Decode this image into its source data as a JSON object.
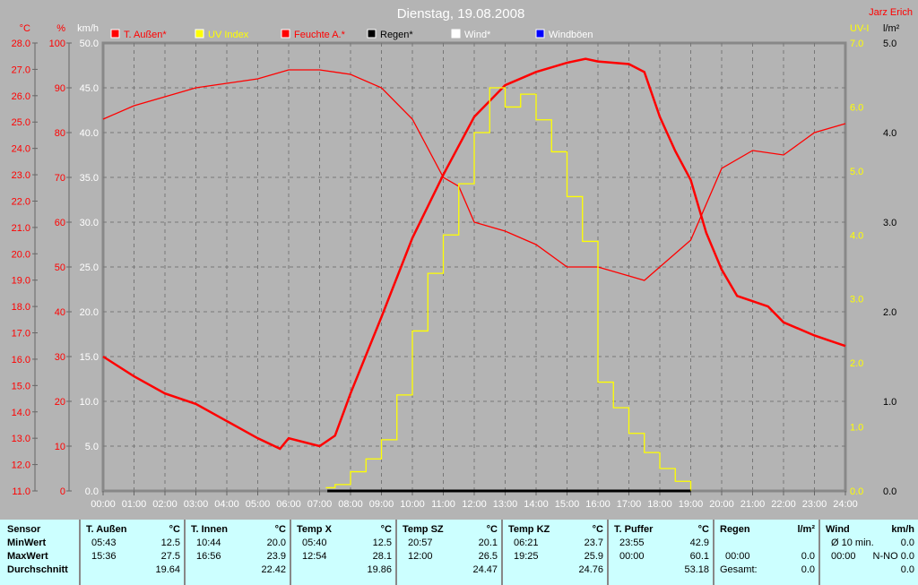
{
  "header": {
    "title": "Dienstag, 19.08.2008",
    "author": "Jarz Erich"
  },
  "legend": [
    {
      "label": "T. Außen*",
      "color": "#ff0000",
      "text_color": "#ff0000"
    },
    {
      "label": "UV Index",
      "color": "#ffff00",
      "text_color": "#ffff00"
    },
    {
      "label": "Feuchte A.*",
      "color": "#ff0000",
      "text_color": "#ff0000"
    },
    {
      "label": "Regen*",
      "color": "#000000",
      "text_color": "#000000"
    },
    {
      "label": "Wind*",
      "color": "#ffffff",
      "text_color": "#ffffff"
    },
    {
      "label": "Windböen",
      "color": "#0000ff",
      "text_color": "#ffffff"
    }
  ],
  "chart_data": {
    "type": "line",
    "title": "Dienstag, 19.08.2008",
    "x_ticks": [
      "00:00",
      "01:00",
      "02:00",
      "03:00",
      "04:00",
      "05:00",
      "06:00",
      "07:00",
      "08:00",
      "09:00",
      "10:00",
      "11:00",
      "12:00",
      "13:00",
      "14:00",
      "15:00",
      "16:00",
      "17:00",
      "18:00",
      "19:00",
      "20:00",
      "21:00",
      "22:00",
      "23:00",
      "24:00"
    ],
    "xlim": [
      0,
      24
    ],
    "axes": {
      "temp": {
        "unit": "°C",
        "range": [
          11,
          28
        ],
        "step": 1,
        "color": "#ff0000"
      },
      "humidity": {
        "unit": "%",
        "range": [
          0,
          100
        ],
        "step": 10,
        "color": "#ff0000"
      },
      "wind": {
        "unit": "km/h",
        "range": [
          0,
          50
        ],
        "step": 5,
        "color": "#ffffff"
      },
      "uv": {
        "unit": "UV-I",
        "range": [
          0,
          7
        ],
        "step": 1,
        "color": "#ffff00"
      },
      "rain": {
        "unit": "l/m²",
        "range": [
          0,
          5
        ],
        "step": 1,
        "color": "#000000"
      }
    },
    "grid": true,
    "series": [
      {
        "name": "T. Außen*",
        "axis": "temp",
        "color": "#ff0000",
        "x": [
          0,
          1,
          2,
          3,
          4,
          5,
          5.72,
          6,
          7,
          7.5,
          8,
          9,
          10,
          11,
          12,
          13,
          14,
          15,
          15.6,
          16,
          17,
          17.5,
          18,
          18.5,
          19,
          19.5,
          20,
          20.5,
          21,
          21.5,
          22,
          23,
          24
        ],
        "y": [
          16.1,
          15.35,
          14.7,
          14.3,
          13.65,
          13.0,
          12.6,
          13.0,
          12.7,
          13.1,
          14.7,
          17.6,
          20.6,
          23.0,
          25.2,
          26.4,
          26.9,
          27.25,
          27.4,
          27.3,
          27.2,
          26.9,
          25.2,
          23.9,
          22.8,
          20.8,
          19.4,
          18.4,
          18.2,
          18.0,
          17.4,
          16.9,
          16.5
        ]
      },
      {
        "name": "Feuchte A.*",
        "axis": "humidity",
        "color": "#ff0000",
        "x": [
          0,
          1,
          2,
          3,
          4,
          5,
          6,
          7,
          8,
          9,
          10,
          11,
          11.5,
          12,
          13,
          14,
          15,
          16,
          17,
          17.5,
          18,
          19,
          19.5,
          20,
          21,
          22,
          23,
          24
        ],
        "y": [
          83,
          86,
          88,
          90,
          91,
          92,
          94,
          94,
          93,
          90,
          83,
          70,
          68,
          60,
          58,
          55,
          50,
          50,
          48,
          47,
          50,
          56,
          64,
          72,
          76,
          75,
          80,
          82
        ]
      },
      {
        "name": "UV Index",
        "axis": "uv",
        "color": "#ffff00",
        "step": true,
        "x": [
          7.2,
          7.5,
          8,
          8.5,
          9,
          9.5,
          10,
          10.5,
          11,
          11.5,
          12,
          12.5,
          13,
          13.5,
          14,
          14.5,
          15,
          15.5,
          16,
          16.5,
          17,
          17.5,
          18,
          18.5,
          19
        ],
        "y": [
          0.05,
          0.1,
          0.3,
          0.5,
          0.8,
          1.5,
          2.5,
          3.4,
          4.0,
          4.8,
          5.6,
          6.3,
          6.0,
          6.2,
          5.8,
          5.3,
          4.6,
          3.9,
          1.7,
          1.3,
          0.9,
          0.6,
          0.35,
          0.15,
          0
        ]
      },
      {
        "name": "Regen*",
        "axis": "rain",
        "color": "#000000",
        "x": [
          7.25,
          19
        ],
        "y": [
          0,
          0
        ]
      }
    ]
  },
  "table": {
    "row_labels": [
      "Sensor",
      "MinWert",
      "MaxWert",
      "Durchschnitt"
    ],
    "columns": [
      {
        "name": "T. Außen",
        "unit": "°C",
        "min_time": "05:43",
        "min": "12.5",
        "max_time": "15:36",
        "max": "27.5",
        "avg": "19.64"
      },
      {
        "name": "T. Innen",
        "unit": "°C",
        "min_time": "10:44",
        "min": "20.0",
        "max_time": "16:56",
        "max": "23.9",
        "avg": "22.42"
      },
      {
        "name": "Temp X",
        "unit": "°C",
        "min_time": "05:40",
        "min": "12.5",
        "max_time": "12:54",
        "max": "28.1",
        "avg": "19.86"
      },
      {
        "name": "Temp SZ",
        "unit": "°C",
        "min_time": "20:57",
        "min": "20.1",
        "max_time": "12:00",
        "max": "26.5",
        "avg": "24.47"
      },
      {
        "name": "Temp KZ",
        "unit": "°C",
        "min_time": "06:21",
        "min": "23.7",
        "max_time": "19:25",
        "max": "25.9",
        "avg": "24.76"
      },
      {
        "name": "T. Puffer",
        "unit": "°C",
        "min_time": "23:55",
        "min": "42.9",
        "max_time": "00:00",
        "max": "60.1",
        "avg": "53.18"
      },
      {
        "name": "Regen",
        "unit": "l/m²",
        "min_time": "",
        "min": "",
        "max_time": "00:00",
        "max": "0.0",
        "avg_label": "Gesamt:",
        "avg": "0.0"
      },
      {
        "name": "Wind",
        "unit": "km/h",
        "min_time": "Ø 10 min.",
        "min": "0.0",
        "max_time": "00:00",
        "max": "N-NO 0.0",
        "avg": "0.0"
      }
    ]
  }
}
